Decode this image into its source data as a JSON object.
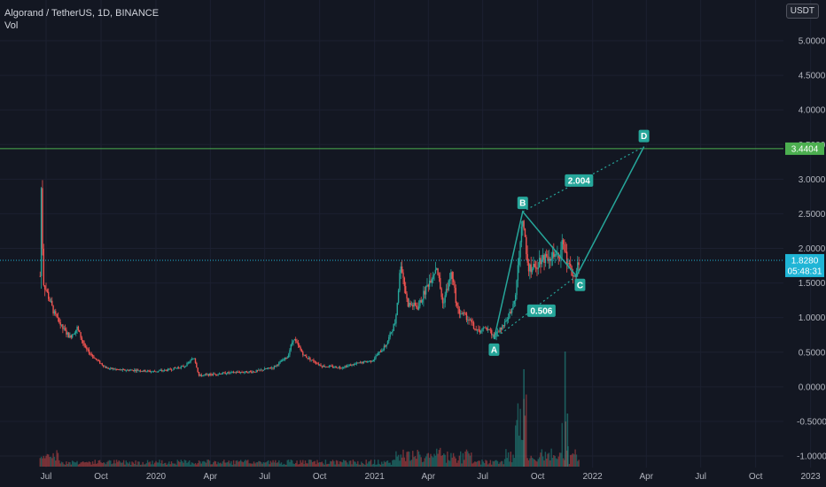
{
  "header": {
    "symbol_line": "Algorand / TetherUS, 1D, BINANCE",
    "indicator": "Vol",
    "currency": "USDT"
  },
  "colors": {
    "background": "#131722",
    "up": "#26a69a",
    "down": "#ef5350",
    "pattern": "#26a69a",
    "resistance": "#4caf50",
    "last_price": "#1fb5d6"
  },
  "chart_data": {
    "type": "candlestick",
    "y_ticks": [
      "5.0000",
      "4.5000",
      "4.0000",
      "3.5000",
      "3.0000",
      "2.5000",
      "2.0000",
      "1.5000",
      "1.0000",
      "0.5000",
      "0.0000",
      "-0.5000",
      "-1.0000"
    ],
    "y_top_partial": "5.5",
    "x_ticks": [
      "Jul",
      "Oct",
      "2020",
      "Apr",
      "Jul",
      "Oct",
      "2021",
      "Apr",
      "Jul",
      "Oct",
      "2022",
      "Apr",
      "Jul",
      "Oct",
      "2023"
    ],
    "ylim": [
      -1.05,
      5.55
    ],
    "resistance": {
      "value": 3.4404,
      "label": "3.4404"
    },
    "last_price": {
      "value": 1.828,
      "label": "1.8280",
      "countdown": "05:48:31"
    },
    "pattern_points": [
      {
        "label": "A",
        "date": "2021-07-20",
        "price": 0.69
      },
      {
        "label": "B",
        "date": "2021-09-06",
        "price": 2.53
      },
      {
        "label": "C",
        "date": "2021-12-05",
        "price": 1.6
      },
      {
        "label": "D",
        "date": "2022-03-28",
        "price": 3.47
      }
    ],
    "ratios": [
      {
        "label": "0.506",
        "date": "2021-09-18",
        "price": 1.1
      },
      {
        "label": "2.004",
        "date": "2021-11-20",
        "price": 2.98
      }
    ],
    "price_path": [
      [
        "2019-06-21",
        1.6
      ],
      [
        "2019-06-22",
        3.44
      ],
      [
        "2019-06-24",
        2.3
      ],
      [
        "2019-06-27",
        1.5
      ],
      [
        "2019-07-05",
        1.3
      ],
      [
        "2019-07-15",
        1.05
      ],
      [
        "2019-07-28",
        0.85
      ],
      [
        "2019-08-10",
        0.72
      ],
      [
        "2019-08-22",
        0.85
      ],
      [
        "2019-09-05",
        0.55
      ],
      [
        "2019-09-22",
        0.4
      ],
      [
        "2019-10-10",
        0.27
      ],
      [
        "2019-11-05",
        0.24
      ],
      [
        "2019-12-01",
        0.24
      ],
      [
        "2019-12-25",
        0.22
      ],
      [
        "2020-01-20",
        0.24
      ],
      [
        "2020-02-18",
        0.3
      ],
      [
        "2020-03-05",
        0.42
      ],
      [
        "2020-03-13",
        0.16
      ],
      [
        "2020-04-15",
        0.19
      ],
      [
        "2020-05-15",
        0.21
      ],
      [
        "2020-06-15",
        0.22
      ],
      [
        "2020-07-15",
        0.28
      ],
      [
        "2020-08-08",
        0.43
      ],
      [
        "2020-08-18",
        0.7
      ],
      [
        "2020-09-05",
        0.45
      ],
      [
        "2020-10-05",
        0.3
      ],
      [
        "2020-11-05",
        0.28
      ],
      [
        "2020-12-05",
        0.34
      ],
      [
        "2020-12-28",
        0.38
      ],
      [
        "2021-01-20",
        0.6
      ],
      [
        "2021-02-05",
        0.95
      ],
      [
        "2021-02-14",
        1.8
      ],
      [
        "2021-02-25",
        1.2
      ],
      [
        "2021-03-15",
        1.15
      ],
      [
        "2021-04-01",
        1.5
      ],
      [
        "2021-04-15",
        1.75
      ],
      [
        "2021-04-25",
        1.2
      ],
      [
        "2021-05-10",
        1.65
      ],
      [
        "2021-05-20",
        1.1
      ],
      [
        "2021-06-05",
        1.0
      ],
      [
        "2021-06-22",
        0.8
      ],
      [
        "2021-07-10",
        0.85
      ],
      [
        "2021-07-20",
        0.72
      ],
      [
        "2021-08-05",
        0.9
      ],
      [
        "2021-08-15",
        1.05
      ],
      [
        "2021-08-25",
        1.35
      ],
      [
        "2021-09-06",
        2.45
      ],
      [
        "2021-09-15",
        1.75
      ],
      [
        "2021-09-25",
        1.7
      ],
      [
        "2021-10-05",
        1.85
      ],
      [
        "2021-10-20",
        1.9
      ],
      [
        "2021-11-05",
        1.85
      ],
      [
        "2021-11-12",
        2.1
      ],
      [
        "2021-11-20",
        1.75
      ],
      [
        "2021-12-01",
        1.6
      ],
      [
        "2021-12-05",
        1.7
      ],
      [
        "2021-12-10",
        1.83
      ]
    ]
  }
}
